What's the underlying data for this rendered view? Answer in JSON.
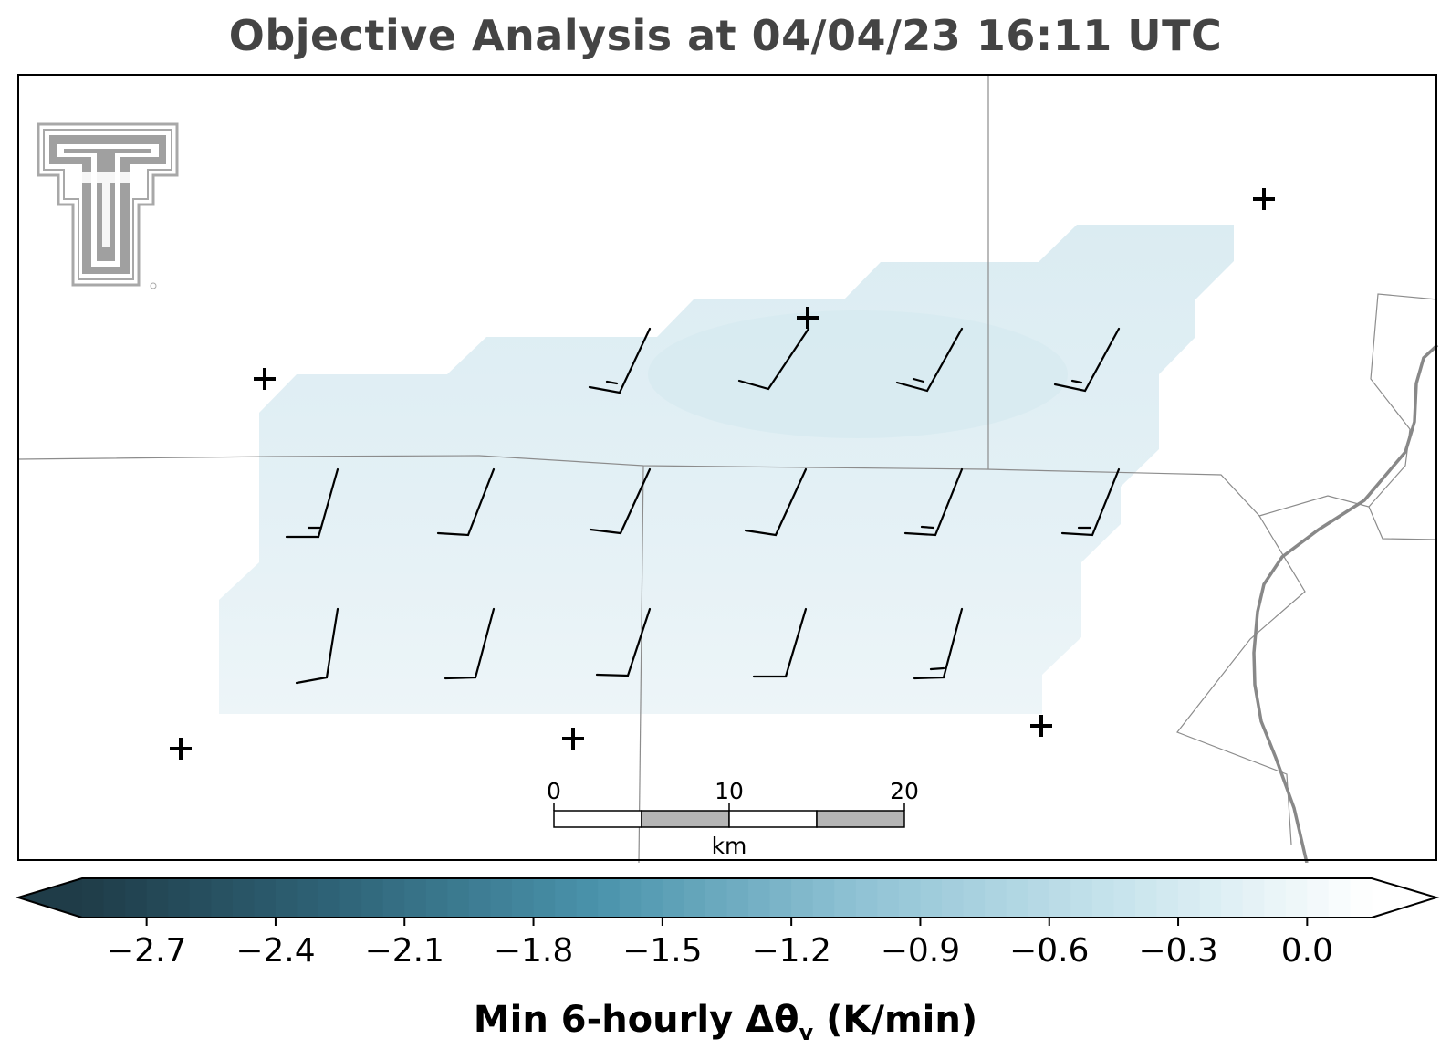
{
  "title": "Objective Analysis at 04/04/23 16:11 UTC",
  "colorbar": {
    "label_main": "Min 6-hourly Δθ",
    "label_sub": "v",
    "label_unit": " (K/min)",
    "vmin": -2.85,
    "vmax": 0.15,
    "ticks": [
      {
        "value": -2.7,
        "label": "−2.7"
      },
      {
        "value": -2.4,
        "label": "−2.4"
      },
      {
        "value": -2.1,
        "label": "−2.1"
      },
      {
        "value": -1.8,
        "label": "−1.8"
      },
      {
        "value": -1.5,
        "label": "−1.5"
      },
      {
        "value": -1.2,
        "label": "−1.2"
      },
      {
        "value": -0.9,
        "label": "−0.9"
      },
      {
        "value": -0.6,
        "label": "−0.6"
      },
      {
        "value": -0.3,
        "label": "−0.3"
      },
      {
        "value": 0.0,
        "label": "0.0"
      }
    ],
    "color_stops": [
      "#1f3c48",
      "#2f6478",
      "#4a93ab",
      "#8fc2d4",
      "#c6e3ec",
      "#ffffff"
    ],
    "extend": "both"
  },
  "scale_bar": {
    "labels": [
      "0",
      "10",
      "20"
    ],
    "unit": "km"
  },
  "logo": "texas-tech-double-t-logo",
  "colors": {
    "field": "#dcedf3",
    "boundary": "#8c8c8c",
    "river": "#888888",
    "barb": "#000000",
    "title": "#444444"
  }
}
